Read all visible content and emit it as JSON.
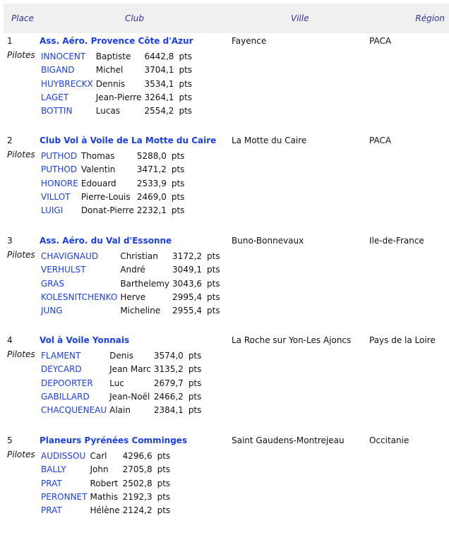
{
  "header": {
    "place": "Place",
    "club": "Club",
    "ville": "Ville",
    "region": "Région"
  },
  "pilotes_label": "Pilotes",
  "pts_label": "pts",
  "colors": {
    "link": "#1a3ee8",
    "header_text": "#333399",
    "header_bg": "#f0f0f0"
  },
  "clubs": [
    {
      "place": "1",
      "club": "Ass. Aéro. Provence Côte d'Azur",
      "ville": "Fayence",
      "region": "PACA",
      "pilotes": [
        [
          "INNOCENT",
          "Baptiste",
          "6442,8"
        ],
        [
          "BIGAND",
          "Michel",
          "3704,1"
        ],
        [
          "HUYBRECKX",
          "Dennis",
          "3534,1"
        ],
        [
          "LAGET",
          "Jean-Pierre",
          "3264,1"
        ],
        [
          "BOTTIN",
          "Lucas",
          "2554,2"
        ]
      ]
    },
    {
      "place": "2",
      "club": "Club Vol à Voile de La Motte du Caire",
      "ville": "La Motte du Caire",
      "region": "PACA",
      "pilotes": [
        [
          "PUTHOD",
          "Thomas",
          "5288,0"
        ],
        [
          "PUTHOD",
          "Valentin",
          "3471,2"
        ],
        [
          "HONORE",
          "Edouard",
          "2533,9"
        ],
        [
          "VILLOT",
          "Pierre-Louis",
          "2469,0"
        ],
        [
          "LUIGI",
          "Donat-Pierre",
          "2232,1"
        ]
      ]
    },
    {
      "place": "3",
      "club": "Ass. Aéro. du Val d'Essonne",
      "ville": "Buno-Bonnevaux",
      "region": "Ile-de-France",
      "pilotes": [
        [
          "CHAVIGNAUD",
          "Christian",
          "3172,2"
        ],
        [
          "VERHULST",
          "André",
          "3049,1"
        ],
        [
          "GRAS",
          "Barthelemy",
          "3043,6"
        ],
        [
          "KOLESNITCHENKO",
          "Herve",
          "2995,4"
        ],
        [
          "JUNG",
          "Micheline",
          "2955,4"
        ]
      ]
    },
    {
      "place": "4",
      "club": "Vol à Voile Yonnais",
      "ville": "La Roche sur Yon-Les Ajoncs",
      "region": "Pays de la Loire",
      "pilotes": [
        [
          "FLAMENT",
          "Denis",
          "3574,0"
        ],
        [
          "DEYCARD",
          "Jean Marc",
          "3135,2"
        ],
        [
          "DEPOORTER",
          "Luc",
          "2679,7"
        ],
        [
          "GABILLARD",
          "Jean-Noël",
          "2466,2"
        ],
        [
          "CHACQUENEAU",
          "Alain",
          "2384,1"
        ]
      ]
    },
    {
      "place": "5",
      "club": "Planeurs Pyrénées Comminges",
      "ville": "Saint Gaudens-Montrejeau",
      "region": "Occitanie",
      "pilotes": [
        [
          "AUDISSOU",
          "Carl",
          "4296,6"
        ],
        [
          "BALLY",
          "John",
          "2705,8"
        ],
        [
          "PRAT",
          "Robert",
          "2502,8"
        ],
        [
          "PERONNET",
          "Mathis",
          "2192,3"
        ],
        [
          "PRAT",
          "Hélène",
          "2124,2"
        ]
      ]
    }
  ]
}
